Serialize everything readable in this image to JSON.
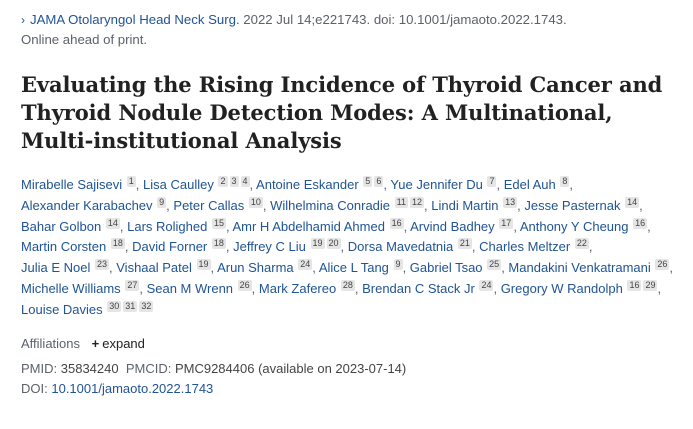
{
  "citation": {
    "chevron": "›",
    "journal": "JAMA Otolaryngol Head Neck Surg.",
    "details": " 2022 Jul 14;e221743. doi: 10.1001/jamaoto.2022.1743.",
    "status": "Online ahead of print."
  },
  "title": "Evaluating the Rising Incidence of Thyroid Cancer and Thyroid Nodule Detection Modes: A Multinational, Multi-institutional Analysis",
  "authors": [
    {
      "name": "Mirabelle Sajisevi",
      "affs": [
        "1"
      ]
    },
    {
      "name": "Lisa Caulley",
      "affs": [
        "2",
        "3",
        "4"
      ]
    },
    {
      "name": "Antoine Eskander",
      "affs": [
        "5",
        "6"
      ]
    },
    {
      "name": "Yue Jennifer Du",
      "affs": [
        "7"
      ]
    },
    {
      "name": "Edel Auh",
      "affs": [
        "8"
      ]
    },
    {
      "name": "Alexander Karabachev",
      "affs": [
        "9"
      ]
    },
    {
      "name": "Peter Callas",
      "affs": [
        "10"
      ]
    },
    {
      "name": "Wilhelmina Conradie",
      "affs": [
        "11",
        "12"
      ]
    },
    {
      "name": "Lindi Martin",
      "affs": [
        "13"
      ]
    },
    {
      "name": "Jesse Pasternak",
      "affs": [
        "14"
      ]
    },
    {
      "name": "Bahar Golbon",
      "affs": [
        "14"
      ]
    },
    {
      "name": "Lars Rolighed",
      "affs": [
        "15"
      ]
    },
    {
      "name": "Amr H Abdelhamid Ahmed",
      "affs": [
        "16"
      ]
    },
    {
      "name": "Arvind Badhey",
      "affs": [
        "17"
      ]
    },
    {
      "name": "Anthony Y Cheung",
      "affs": [
        "16"
      ]
    },
    {
      "name": "Martin Corsten",
      "affs": [
        "18"
      ]
    },
    {
      "name": "David Forner",
      "affs": [
        "18"
      ]
    },
    {
      "name": "Jeffrey C Liu",
      "affs": [
        "19",
        "20"
      ]
    },
    {
      "name": "Dorsa Mavedatnia",
      "affs": [
        "21"
      ]
    },
    {
      "name": "Charles Meltzer",
      "affs": [
        "22"
      ]
    },
    {
      "name": "Julia E Noel",
      "affs": [
        "23"
      ]
    },
    {
      "name": "Vishaal Patel",
      "affs": [
        "19"
      ]
    },
    {
      "name": "Arun Sharma",
      "affs": [
        "24"
      ]
    },
    {
      "name": "Alice L Tang",
      "affs": [
        "9"
      ]
    },
    {
      "name": "Gabriel Tsao",
      "affs": [
        "25"
      ]
    },
    {
      "name": "Mandakini Venkatramani",
      "affs": [
        "26"
      ]
    },
    {
      "name": "Michelle Williams",
      "affs": [
        "27"
      ]
    },
    {
      "name": "Sean M Wrenn",
      "affs": [
        "26"
      ]
    },
    {
      "name": "Mark Zafereo",
      "affs": [
        "28"
      ]
    },
    {
      "name": "Brendan C Stack Jr",
      "affs": [
        "24"
      ]
    },
    {
      "name": "Gregory W Randolph",
      "affs": [
        "16",
        "29"
      ]
    },
    {
      "name": "Louise Davies",
      "affs": [
        "30",
        "31",
        "32"
      ]
    }
  ],
  "affiliations": {
    "label": "Affiliations",
    "expand_symbol": "+",
    "expand_label": "expand"
  },
  "ids": {
    "pmid_label": "PMID:",
    "pmid": "35834240",
    "pmcid_label": "PMCID:",
    "pmcid": "PMC9284406",
    "pmcid_note": "(available on 2023-07-14)",
    "doi_label": "DOI:",
    "doi": "10.1001/jamaoto.2022.1743"
  }
}
